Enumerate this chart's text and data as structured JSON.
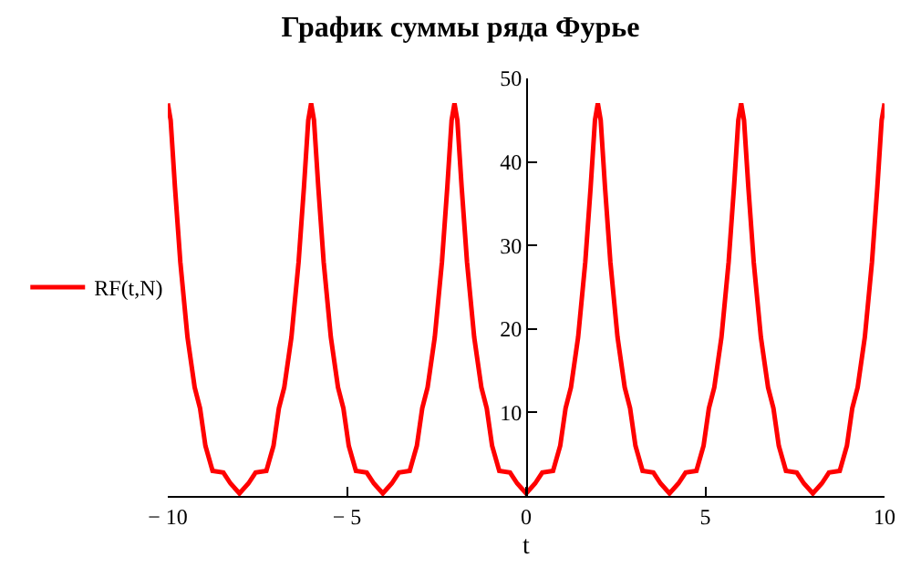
{
  "chart_data": {
    "type": "line",
    "title": "График суммы ряда Фурье",
    "xlabel": "t",
    "x": [
      -10,
      -9.92,
      -9.8,
      -9.65,
      -9.45,
      -9.25,
      -9.1,
      -8.95,
      -8.75,
      -8.45,
      -8.25,
      -8,
      -7.75,
      -7.55,
      -7.25,
      -7.05,
      -6.9,
      -6.75,
      -6.55,
      -6.35,
      -6.2,
      -6.08,
      -6,
      -5.92,
      -5.8,
      -5.65,
      -5.45,
      -5.25,
      -5.1,
      -4.95,
      -4.75,
      -4.45,
      -4.25,
      -4,
      -3.75,
      -3.55,
      -3.25,
      -3.05,
      -2.9,
      -2.75,
      -2.55,
      -2.35,
      -2.2,
      -2.08,
      -2,
      -1.92,
      -1.8,
      -1.65,
      -1.45,
      -1.25,
      -1.1,
      -0.95,
      -0.75,
      -0.45,
      -0.25,
      0,
      0.25,
      0.45,
      0.75,
      0.95,
      1.1,
      1.25,
      1.45,
      1.65,
      1.8,
      1.92,
      2,
      2.08,
      2.2,
      2.35,
      2.55,
      2.75,
      2.9,
      3.05,
      3.25,
      3.55,
      3.75,
      4,
      4.25,
      4.45,
      4.75,
      4.95,
      5.1,
      5.25,
      5.45,
      5.65,
      5.8,
      5.92,
      6,
      6.08,
      6.2,
      6.35,
      6.55,
      6.75,
      6.9,
      7.05,
      7.25,
      7.55,
      7.75,
      8,
      8.25,
      8.45,
      8.75,
      8.95,
      9.1,
      9.25,
      9.45,
      9.65,
      9.8,
      9.92,
      10
    ],
    "series": [
      {
        "name": "RF(t,N)",
        "color": "#ff0000",
        "values": [
          47,
          45,
          37,
          28,
          19,
          13,
          10.5,
          6,
          3,
          2.8,
          1.5,
          0.3,
          1.5,
          2.8,
          3,
          6,
          10.5,
          13,
          19,
          28,
          37,
          45,
          47,
          45,
          37,
          28,
          19,
          13,
          10.5,
          6,
          3,
          2.8,
          1.5,
          0.3,
          1.5,
          2.8,
          3,
          6,
          10.5,
          13,
          19,
          28,
          37,
          45,
          47,
          45,
          37,
          28,
          19,
          13,
          10.5,
          6,
          3,
          2.8,
          1.5,
          0.3,
          1.5,
          2.8,
          3,
          6,
          10.5,
          13,
          19,
          28,
          37,
          45,
          47,
          45,
          37,
          28,
          19,
          13,
          10.5,
          6,
          3,
          2.8,
          1.5,
          0.3,
          1.5,
          2.8,
          3,
          6,
          10.5,
          13,
          19,
          28,
          37,
          45,
          47,
          45,
          37,
          28,
          19,
          13,
          10.5,
          6,
          3,
          2.8,
          1.5,
          0.3,
          1.5,
          2.8,
          3,
          6,
          10.5,
          13,
          19,
          28,
          37,
          45,
          47
        ]
      }
    ],
    "xlim": [
      -10,
      10
    ],
    "ylim": [
      0,
      50
    ],
    "xticks": [
      {
        "value": -10,
        "label": "− 10"
      },
      {
        "value": -5,
        "label": "− 5"
      },
      0,
      5,
      10
    ],
    "yticks": [
      {
        "value": 0,
        "label": null
      },
      10,
      20,
      30,
      40,
      50
    ],
    "legend": "left",
    "marker": "none",
    "line_style": "solid"
  }
}
